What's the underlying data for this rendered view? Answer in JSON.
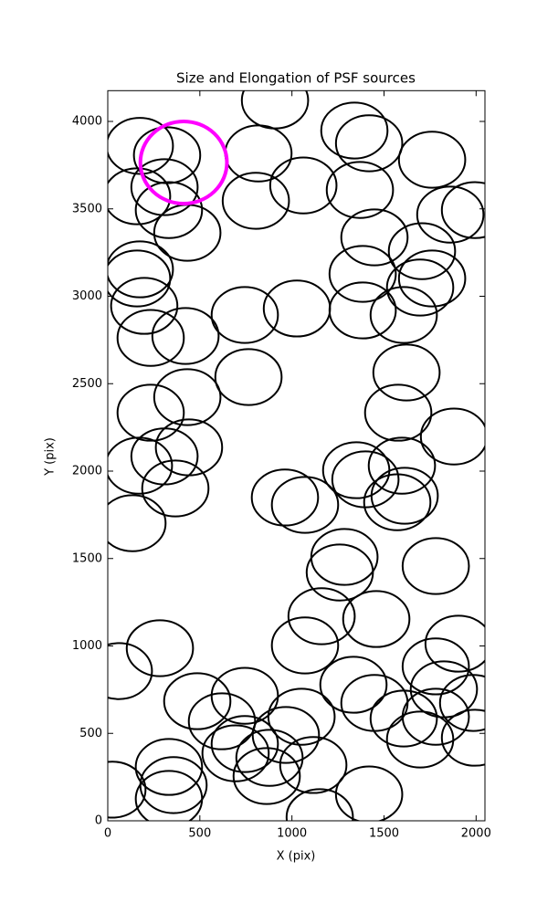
{
  "chart_data": {
    "type": "ellipse",
    "title": "Size and Elongation of PSF sources",
    "x_label": "X (pix)",
    "y_label": "Y (pix)",
    "xlim": [
      0,
      2048
    ],
    "ylim": [
      0,
      4176
    ],
    "xticks": [
      0,
      500,
      1000,
      1500,
      2000
    ],
    "yticks": [
      0,
      500,
      1000,
      1500,
      2000,
      2500,
      3000,
      3500,
      4000
    ],
    "series": [
      {
        "color": "#000000",
        "width": 360,
        "height": 320,
        "x": [
          174,
          322,
          818,
          908,
          1339,
          1419,
          1761,
          159,
          308,
          332,
          432,
          804,
          1062,
          1369,
          1448,
          1860,
          1994,
          1706,
          1384,
          1761,
          1696,
          1607,
          1384,
          174,
          159,
          198,
          233,
          422,
          744,
          1027,
          764,
          1622,
          1577,
          432,
          233,
          1880,
          441,
          308,
          169,
          367,
          134,
          1349,
          1399,
          1597,
          1612,
          1572,
          962,
          1071,
          1285,
          1260,
          1781,
          1161,
          1458,
          1071,
          283,
          60,
          1905,
          1781,
          1825,
          1984,
          1334,
          1448,
          1607,
          1781,
          1696,
          1994,
          744,
          486,
          620,
          744,
          1052,
          967,
          1116,
          863,
          332,
          357,
          332,
          25,
          1419,
          1151,
          694,
          878
        ],
        "y": [
          3860,
          3807,
          3817,
          4120,
          3948,
          3875,
          3781,
          3572,
          3624,
          3493,
          3363,
          3546,
          3634,
          3608,
          3337,
          3467,
          3493,
          3258,
          3128,
          3102,
          3050,
          2893,
          2919,
          3154,
          3102,
          2945,
          2762,
          2773,
          2893,
          2930,
          2538,
          2564,
          2334,
          2423,
          2334,
          2198,
          2136,
          2084,
          2031,
          1901,
          1702,
          2005,
          1953,
          2031,
          1859,
          1822,
          1849,
          1807,
          1509,
          1420,
          1457,
          1170,
          1154,
          1003,
          987,
          856,
          1013,
          883,
          752,
          674,
          778,
          674,
          585,
          595,
          465,
          475,
          715,
          684,
          569,
          439,
          595,
          491,
          319,
          256,
          308,
          204,
          125,
          178,
          151,
          21,
          386,
          360
        ]
      },
      {
        "color": "#ff00ff",
        "width": 470,
        "height": 470,
        "x": [
          412
        ],
        "y": [
          3765
        ]
      }
    ]
  }
}
